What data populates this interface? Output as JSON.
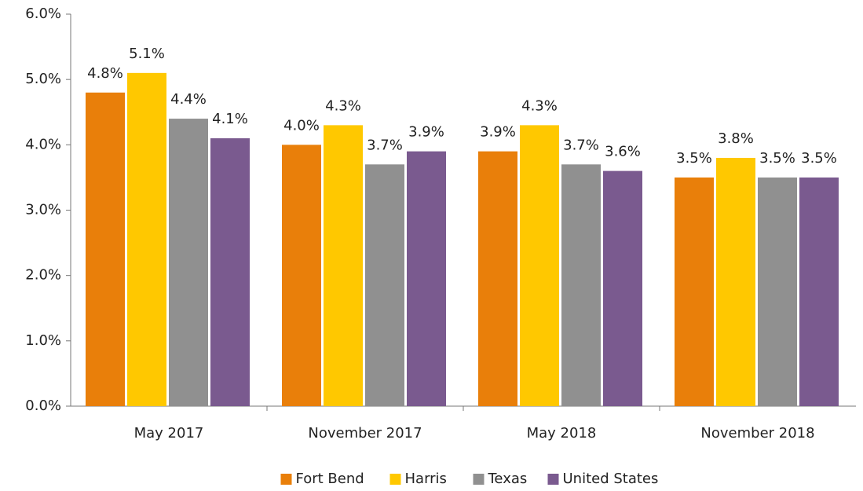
{
  "chart_data": {
    "type": "bar",
    "categories": [
      "May 2017",
      "November 2017",
      "May 2018",
      "November 2018"
    ],
    "series": [
      {
        "name": "Fort Bend",
        "color": "#e97f0a",
        "values": [
          4.8,
          4.0,
          3.9,
          3.5
        ],
        "value_labels": [
          "4.8%",
          "4.0%",
          "3.9%",
          "3.5%"
        ]
      },
      {
        "name": "Harris",
        "color": "#ffc800",
        "values": [
          5.1,
          4.3,
          4.3,
          3.8
        ],
        "value_labels": [
          "5.1%",
          "4.3%",
          "4.3%",
          "3.8%"
        ]
      },
      {
        "name": "Texas",
        "color": "#909090",
        "values": [
          4.4,
          3.7,
          3.7,
          3.5
        ],
        "value_labels": [
          "4.4%",
          "3.7%",
          "3.7%",
          "3.5%"
        ]
      },
      {
        "name": "United States",
        "color": "#7a5a8f",
        "values": [
          4.1,
          3.9,
          3.6,
          3.5
        ],
        "value_labels": [
          "4.1%",
          "3.9%",
          "3.6%",
          "3.5%"
        ]
      }
    ],
    "ylim": [
      0,
      6
    ],
    "yticks": [
      {
        "value": 0,
        "label": "0.0%"
      },
      {
        "value": 1,
        "label": "1.0%"
      },
      {
        "value": 2,
        "label": "2.0%"
      },
      {
        "value": 3,
        "label": "3.0%"
      },
      {
        "value": 4,
        "label": "4.0%"
      },
      {
        "value": 5,
        "label": "5.0%"
      },
      {
        "value": 6,
        "label": "6.0%"
      }
    ],
    "legend": "bottom"
  }
}
